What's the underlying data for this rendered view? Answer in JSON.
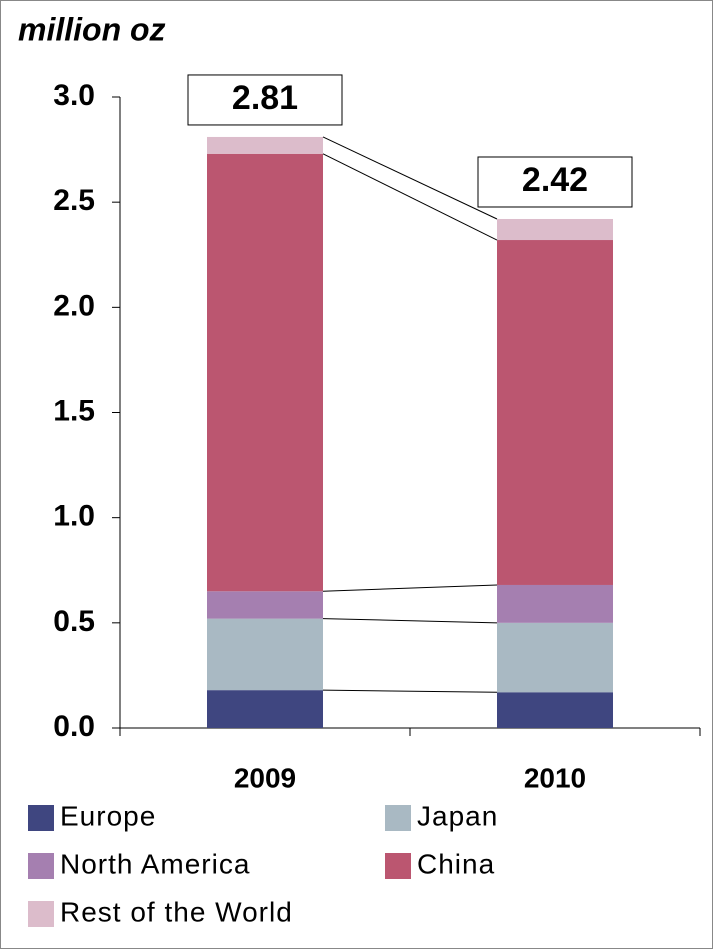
{
  "chart_data": {
    "type": "stacked_bar",
    "title": "million oz",
    "categories": [
      "2009",
      "2010"
    ],
    "series": [
      {
        "name": "Europe",
        "color": "#3f4680",
        "values": [
          0.18,
          0.17
        ]
      },
      {
        "name": "Japan",
        "color": "#a9b9c3",
        "values": [
          0.34,
          0.33
        ]
      },
      {
        "name": "North America",
        "color": "#a57fb0",
        "values": [
          0.13,
          0.18
        ]
      },
      {
        "name": "China",
        "color": "#bb5670",
        "values": [
          2.08,
          1.64
        ]
      },
      {
        "name": "Rest of the World",
        "color": "#dcbccb",
        "values": [
          0.08,
          0.1
        ]
      }
    ],
    "totals": [
      2.81,
      2.42
    ],
    "ylim": [
      0,
      3
    ],
    "yticks": [
      {
        "value": 0,
        "label": "0.0"
      },
      0.5,
      {
        "value": 1,
        "label": "1.0"
      },
      1.5,
      {
        "value": 2,
        "label": "2.0"
      },
      2.5,
      {
        "value": 3,
        "label": "3.0"
      }
    ],
    "legend": "bottom"
  }
}
